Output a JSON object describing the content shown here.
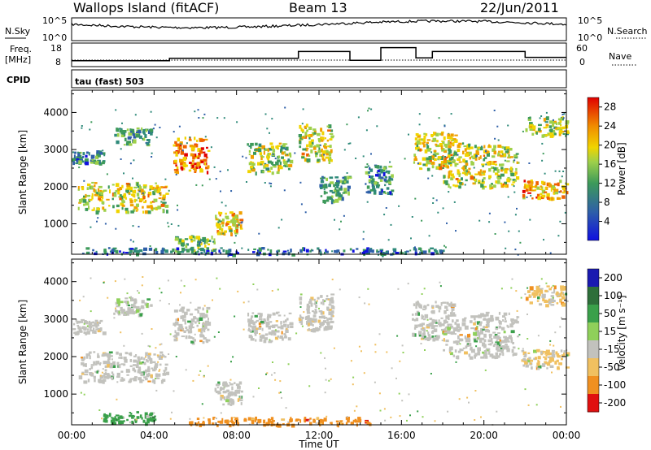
{
  "chart_data": [
    {
      "panel": "summary",
      "type": "line",
      "title": "Wallops Island (fitACF)",
      "beam": "Beam 13",
      "date": "22/Jun/2011",
      "nsky": {
        "label": "N.Sky",
        "ticks": [
          "10^5",
          "10^0"
        ]
      },
      "nsearch": {
        "label": "N.Search",
        "ticks": [
          "10^5",
          "10^0"
        ]
      },
      "freq": {
        "label": "Freq.",
        "unit": "[MHz]",
        "ticks": [
          "18",
          "8"
        ],
        "series": [
          {
            "x": 0.0,
            "y": 9.8
          },
          {
            "x": 4.75,
            "y": 9.8
          },
          {
            "x": 4.75,
            "y": 11.0
          },
          {
            "x": 11.0,
            "y": 11.0
          },
          {
            "x": 11.0,
            "y": 14.5
          },
          {
            "x": 13.5,
            "y": 14.5
          },
          {
            "x": 13.5,
            "y": 10.0
          },
          {
            "x": 15.0,
            "y": 10.0
          },
          {
            "x": 15.0,
            "y": 16.5
          },
          {
            "x": 16.7,
            "y": 16.5
          },
          {
            "x": 16.7,
            "y": 11.2
          },
          {
            "x": 17.5,
            "y": 11.2
          },
          {
            "x": 17.5,
            "y": 14.5
          },
          {
            "x": 22.0,
            "y": 14.5
          },
          {
            "x": 22.0,
            "y": 11.5
          },
          {
            "x": 24.0,
            "y": 11.5
          }
        ]
      },
      "nave": {
        "label": "Nave",
        "ticks": [
          "60",
          "0"
        ]
      },
      "cpid": {
        "label": "CPID",
        "value": "tau (fast) 503"
      }
    },
    {
      "panel": "power",
      "type": "heatmap",
      "ylabel": "Slant Range [km]",
      "y_ticks": [
        "1000",
        "2000",
        "3000",
        "4000"
      ],
      "ylim": [
        180,
        4600
      ],
      "xlim": [
        0,
        24
      ],
      "colorbar": {
        "label": "Power [dB]",
        "ticks": [
          "4",
          "8",
          "12",
          "16",
          "20",
          "24",
          "28"
        ],
        "range": [
          0,
          30
        ]
      },
      "regions": [
        {
          "t0": 0.3,
          "t1": 4.6,
          "r0": 1350,
          "r1": 2150,
          "level": 18
        },
        {
          "t0": 0.0,
          "t1": 1.5,
          "r0": 2650,
          "r1": 3000,
          "level": 8
        },
        {
          "t0": 2.0,
          "t1": 3.8,
          "r0": 3150,
          "r1": 3600,
          "level": 10
        },
        {
          "t0": 4.9,
          "t1": 6.6,
          "r0": 2400,
          "r1": 3350,
          "level": 24
        },
        {
          "t0": 5.0,
          "t1": 6.9,
          "r0": 300,
          "r1": 700,
          "level": 14
        },
        {
          "t0": 6.9,
          "t1": 8.2,
          "r0": 750,
          "r1": 1350,
          "level": 20
        },
        {
          "t0": 8.5,
          "t1": 10.6,
          "r0": 2400,
          "r1": 3200,
          "level": 16
        },
        {
          "t0": 11.0,
          "t1": 12.6,
          "r0": 2700,
          "r1": 3700,
          "level": 18
        },
        {
          "t0": 12.0,
          "t1": 13.4,
          "r0": 1600,
          "r1": 2300,
          "level": 10
        },
        {
          "t0": 14.2,
          "t1": 15.5,
          "r0": 1800,
          "r1": 2600,
          "level": 8
        },
        {
          "t0": 16.5,
          "t1": 18.6,
          "r0": 2500,
          "r1": 3500,
          "level": 18
        },
        {
          "t0": 18.0,
          "t1": 21.6,
          "r0": 2000,
          "r1": 3200,
          "level": 18
        },
        {
          "t0": 21.8,
          "t1": 24.0,
          "r0": 1700,
          "r1": 2200,
          "level": 22
        },
        {
          "t0": 22.0,
          "t1": 24.0,
          "r0": 3400,
          "r1": 3900,
          "level": 16
        },
        {
          "t0": 0.5,
          "t1": 18.0,
          "r0": 200,
          "r1": 380,
          "level": 6
        }
      ]
    },
    {
      "panel": "velocity",
      "type": "heatmap",
      "ylabel": "Slant Range [km]",
      "xlabel": "Time UT",
      "x_ticks": [
        "00:00",
        "04:00",
        "08:00",
        "12:00",
        "16:00",
        "20:00",
        "00:00"
      ],
      "y_ticks": [
        "1000",
        "2000",
        "3000",
        "4000"
      ],
      "ylim": [
        180,
        4600
      ],
      "xlim": [
        0,
        24
      ],
      "colorbar": {
        "label": "Velocity [m s⁻¹]",
        "ticks": [
          "200",
          "100",
          "50",
          "15",
          "-15",
          "-50",
          "-100",
          "-200"
        ]
      },
      "regions": [
        {
          "t0": 0.3,
          "t1": 4.6,
          "r0": 1350,
          "r1": 2150,
          "level": 0
        },
        {
          "t0": 0.0,
          "t1": 1.5,
          "r0": 2650,
          "r1": 3000,
          "level": 0
        },
        {
          "t0": 2.0,
          "t1": 3.8,
          "r0": 3150,
          "r1": 3600,
          "level": 10
        },
        {
          "t0": 4.9,
          "t1": 6.6,
          "r0": 2400,
          "r1": 3350,
          "level": 0
        },
        {
          "t0": 6.9,
          "t1": 8.2,
          "r0": 750,
          "r1": 1350,
          "level": 0
        },
        {
          "t0": 8.5,
          "t1": 10.6,
          "r0": 2400,
          "r1": 3200,
          "level": 0
        },
        {
          "t0": 11.0,
          "t1": 12.6,
          "r0": 2700,
          "r1": 3700,
          "level": 0
        },
        {
          "t0": 16.5,
          "t1": 18.6,
          "r0": 2500,
          "r1": 3500,
          "level": 0
        },
        {
          "t0": 18.0,
          "t1": 21.6,
          "r0": 2000,
          "r1": 3200,
          "level": 0
        },
        {
          "t0": 21.8,
          "t1": 24.0,
          "r0": 1700,
          "r1": 2200,
          "level": -20
        },
        {
          "t0": 22.0,
          "t1": 24.0,
          "r0": 3400,
          "r1": 3900,
          "level": -20
        },
        {
          "t0": 1.5,
          "t1": 4.0,
          "r0": 250,
          "r1": 550,
          "level": 40
        },
        {
          "t0": 5.5,
          "t1": 14.5,
          "r0": 200,
          "r1": 400,
          "level": -60
        }
      ]
    }
  ]
}
